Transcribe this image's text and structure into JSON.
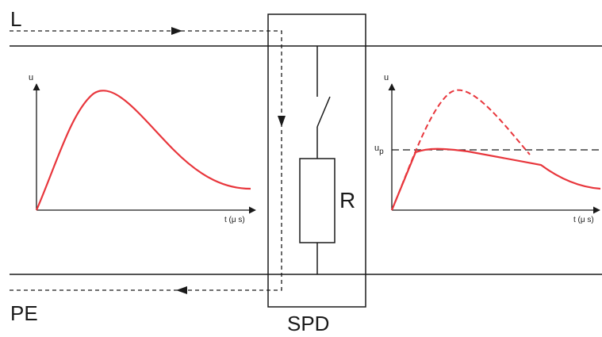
{
  "labels": {
    "line_conductor": "L",
    "protective_earth": "PE",
    "device": "SPD",
    "resistor": "R"
  },
  "left_graph": {
    "y_axis": "u",
    "x_axis": "t (μ s)"
  },
  "right_graph": {
    "y_axis": "u",
    "level_label": "u",
    "level_subscript": "p",
    "x_axis": "t (μ s)"
  },
  "colors": {
    "wire": "#1a1a1a",
    "curve": "#e8363c"
  }
}
